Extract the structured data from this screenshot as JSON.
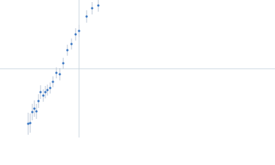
{
  "chart_data": {
    "type": "scatter",
    "xlim": [
      0,
      400
    ],
    "ylim": [
      0,
      200
    ],
    "reference_x": 115,
    "reference_y": 100,
    "reference_color": "#c9d6df",
    "color": "#3b78c4",
    "error_color": "#b8c6d4",
    "x": [
      41,
      44,
      47,
      50,
      53,
      56,
      59,
      63,
      66,
      69,
      73,
      77,
      82,
      87,
      92,
      98,
      104,
      110,
      115,
      126,
      134,
      143
    ],
    "values": [
      20,
      21,
      37,
      42,
      38,
      53,
      66,
      61,
      66,
      69,
      72,
      81,
      94,
      92,
      108,
      127,
      136,
      150,
      155,
      176,
      188,
      192
    ],
    "errors": [
      16,
      14,
      12,
      12,
      11,
      10,
      10,
      9,
      9,
      8,
      8,
      8,
      8,
      9,
      8,
      8,
      8,
      9,
      9,
      9,
      9,
      9
    ]
  }
}
